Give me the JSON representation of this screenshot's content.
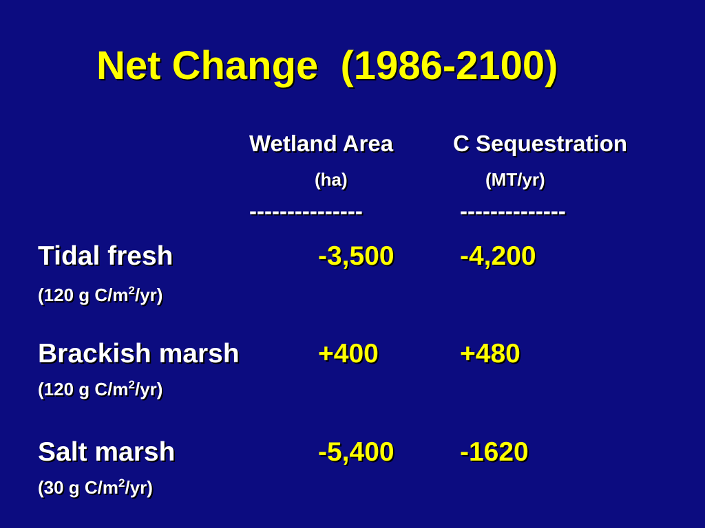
{
  "title": "Net Change  (1986-2100)",
  "header": {
    "columns": [
      "Wetland Area",
      "C Sequestration"
    ],
    "units": [
      "(ha)",
      "(MT/yr)"
    ],
    "rules": [
      "---------------",
      "--------------"
    ]
  },
  "rows": [
    {
      "name": "Tidal fresh",
      "rate": [
        "(120 g C/m",
        "2",
        "/yr)"
      ],
      "values": [
        "-3,500",
        "-4,200"
      ]
    },
    {
      "name": "Brackish marsh",
      "rate": [
        "(120 g C/m",
        "2",
        "/yr)"
      ],
      "values": [
        "+400",
        "+480"
      ]
    },
    {
      "name": "Salt marsh",
      "rate": [
        "(30 g C/m",
        "2",
        "/yr)"
      ],
      "values": [
        "-5,400",
        "-1620"
      ]
    }
  ]
}
